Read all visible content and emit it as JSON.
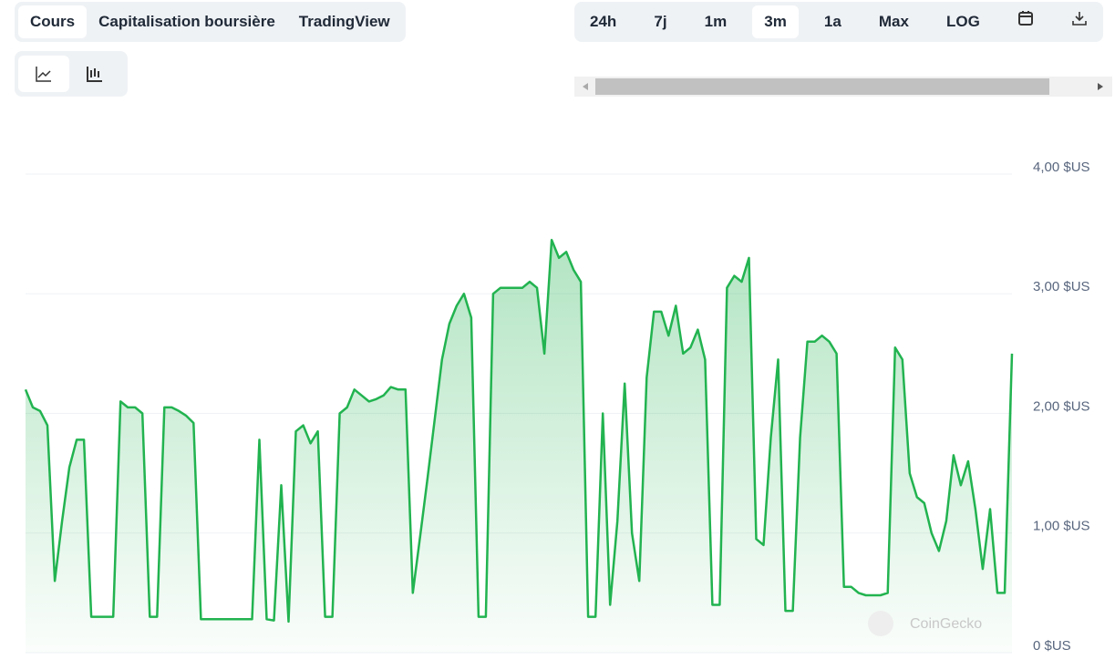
{
  "tabs": [
    "Cours",
    "Capitalisation boursière",
    "TradingView"
  ],
  "active_tab": 0,
  "ranges": [
    "24h",
    "7j",
    "1m",
    "3m",
    "1a",
    "Max",
    "LOG"
  ],
  "active_range": 3,
  "watermark": "CoinGecko",
  "chart_data": {
    "type": "line",
    "color": "#22b350",
    "grid": true,
    "ylim": [
      0,
      4
    ],
    "yticks": [
      {
        "value": 0,
        "label": "0 $US"
      },
      {
        "value": 1,
        "label": "1,00 $US"
      },
      {
        "value": 2,
        "label": "2,00 $US"
      },
      {
        "value": 3,
        "label": "3,00 $US"
      },
      {
        "value": 4,
        "label": "4,00 $US"
      }
    ],
    "values": [
      2.2,
      2.05,
      2.02,
      1.9,
      0.6,
      1.1,
      1.55,
      1.78,
      1.78,
      0.3,
      0.3,
      0.3,
      0.3,
      2.1,
      2.05,
      2.05,
      2.0,
      0.3,
      0.3,
      2.05,
      2.05,
      2.02,
      1.98,
      1.92,
      0.28,
      0.28,
      0.28,
      0.28,
      0.28,
      0.28,
      0.28,
      0.28,
      1.78,
      0.28,
      0.27,
      1.4,
      0.26,
      1.85,
      1.9,
      1.75,
      1.85,
      0.3,
      0.3,
      2.0,
      2.05,
      2.2,
      2.15,
      2.1,
      2.12,
      2.15,
      2.22,
      2.2,
      2.2,
      0.5,
      0.97,
      1.45,
      1.95,
      2.45,
      2.75,
      2.9,
      3.0,
      2.8,
      0.3,
      0.3,
      3.0,
      3.05,
      3.05,
      3.05,
      3.05,
      3.1,
      3.05,
      2.5,
      3.45,
      3.3,
      3.35,
      3.2,
      3.1,
      0.3,
      0.3,
      2.0,
      0.4,
      1.1,
      2.25,
      1.0,
      0.6,
      2.3,
      2.85,
      2.85,
      2.65,
      2.9,
      2.5,
      2.55,
      2.7,
      2.45,
      0.4,
      0.4,
      3.05,
      3.15,
      3.1,
      3.3,
      0.95,
      0.9,
      1.8,
      2.45,
      0.35,
      0.35,
      1.8,
      2.6,
      2.6,
      2.65,
      2.6,
      2.5,
      0.55,
      0.55,
      0.5,
      0.48,
      0.48,
      0.48,
      0.5,
      2.55,
      2.45,
      1.5,
      1.3,
      1.25,
      1.0,
      0.85,
      1.1,
      1.65,
      1.4,
      1.6,
      1.2,
      0.7,
      1.2,
      0.5,
      0.5,
      2.5
    ]
  }
}
